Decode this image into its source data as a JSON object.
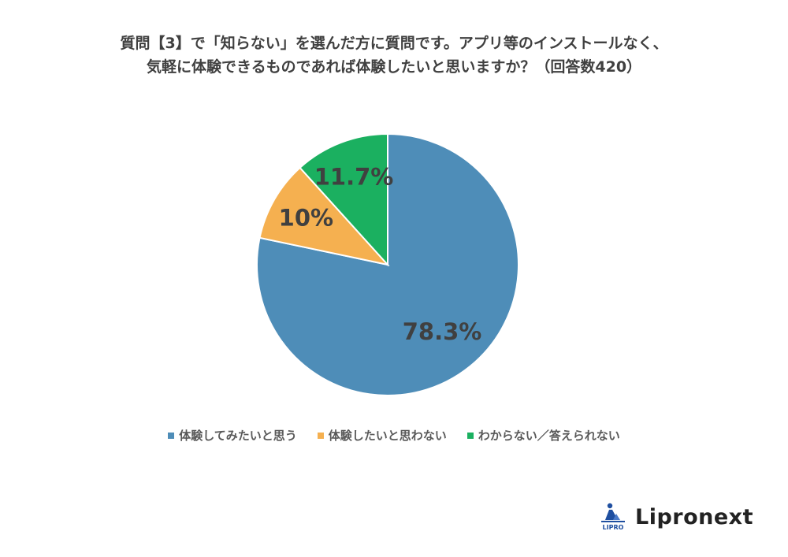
{
  "chart_data": {
    "type": "pie",
    "title_lines": [
      "質問【3】で「知らない」を選んだ方に質問です。アプリ等のインストールなく、",
      "気軽に体験できるものであれば体験したいと思いますか？（回答数420）"
    ],
    "slices": [
      {
        "label": "体験してみたいと思う",
        "value": 78.3,
        "value_label": "78.3%",
        "color": "#4e8db8"
      },
      {
        "label": "体験したいと思わない",
        "value": 10.0,
        "value_label": "10%",
        "color": "#f5b050"
      },
      {
        "label": "わからない／答えられない",
        "value": 11.7,
        "value_label": "11.7%",
        "color": "#1bb060"
      }
    ],
    "start": "12 o'clock",
    "direction": "clockwise",
    "legend_position": "bottom"
  },
  "logo": {
    "text": "Lipronext",
    "mark_text": "LIPRO"
  }
}
